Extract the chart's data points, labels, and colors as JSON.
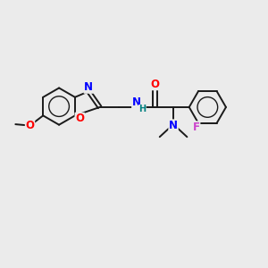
{
  "background_color": "#EBEBEB",
  "bond_color": "#1a1a1a",
  "atom_colors": {
    "N": "#0000FF",
    "O": "#FF0000",
    "F": "#CC44CC",
    "H": "#008080",
    "C": "#1a1a1a"
  },
  "font_size": 8.5,
  "fig_width": 3.0,
  "fig_height": 3.0,
  "dpi": 100
}
